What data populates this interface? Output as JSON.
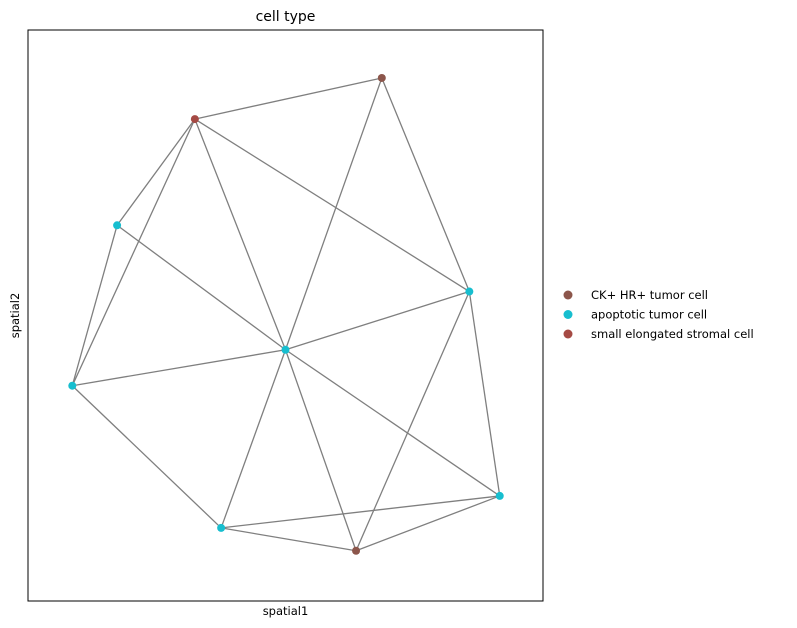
{
  "chart_data": {
    "type": "scatter",
    "title": "cell type",
    "xlabel": "spatial1",
    "ylabel": "spatial2",
    "xlim": [
      0,
      100
    ],
    "ylim": [
      0,
      100
    ],
    "xticks": false,
    "yticks": false,
    "grid": false,
    "legend_position": "right",
    "edge_color": "#7f7f7f",
    "categories": [
      {
        "name": "CK+ HR+ tumor cell",
        "color": "#8c564b"
      },
      {
        "name": "apoptotic tumor cell",
        "color": "#17becf"
      },
      {
        "name": "small elongated stromal cell",
        "color": "#a54a44"
      }
    ],
    "nodes": [
      {
        "id": 0,
        "x": 68.7,
        "y": 91.6,
        "category": 0
      },
      {
        "id": 1,
        "x": 32.4,
        "y": 84.4,
        "category": 2
      },
      {
        "id": 2,
        "x": 17.3,
        "y": 65.8,
        "category": 1
      },
      {
        "id": 3,
        "x": 8.6,
        "y": 37.7,
        "category": 1
      },
      {
        "id": 4,
        "x": 50.0,
        "y": 44.0,
        "category": 1
      },
      {
        "id": 5,
        "x": 85.7,
        "y": 54.2,
        "category": 1
      },
      {
        "id": 6,
        "x": 91.6,
        "y": 18.4,
        "category": 1
      },
      {
        "id": 7,
        "x": 37.5,
        "y": 12.8,
        "category": 1
      },
      {
        "id": 8,
        "x": 63.7,
        "y": 8.8,
        "category": 0
      }
    ],
    "edges": [
      [
        1,
        0
      ],
      [
        1,
        2
      ],
      [
        1,
        3
      ],
      [
        1,
        4
      ],
      [
        1,
        5
      ],
      [
        0,
        4
      ],
      [
        0,
        5
      ],
      [
        2,
        3
      ],
      [
        2,
        4
      ],
      [
        3,
        4
      ],
      [
        3,
        7
      ],
      [
        4,
        5
      ],
      [
        4,
        6
      ],
      [
        4,
        7
      ],
      [
        4,
        8
      ],
      [
        5,
        6
      ],
      [
        5,
        8
      ],
      [
        7,
        8
      ],
      [
        7,
        6
      ],
      [
        8,
        6
      ]
    ]
  }
}
